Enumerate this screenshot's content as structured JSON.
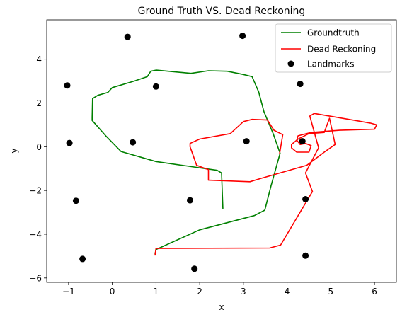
{
  "chart_data": {
    "type": "line",
    "title": "Ground Truth VS. Dead Reckoning",
    "xlabel": "x",
    "ylabel": "y",
    "xlim": [
      -1.5,
      6.5
    ],
    "ylim": [
      -6.2,
      5.8
    ],
    "xticks": [
      -1,
      0,
      1,
      2,
      3,
      4,
      5,
      6
    ],
    "yticks": [
      -6,
      -4,
      -2,
      0,
      2,
      4
    ],
    "grid": false,
    "legend_position": "top-right",
    "series": [
      {
        "name": "Groundtruth",
        "type": "line",
        "color": "#008000",
        "points": [
          [
            2.53,
            -2.82
          ],
          [
            2.5,
            -1.2
          ],
          [
            2.4,
            -1.08
          ],
          [
            1.0,
            -0.68
          ],
          [
            0.2,
            -0.22
          ],
          [
            -0.15,
            0.5
          ],
          [
            -0.46,
            1.2
          ],
          [
            -0.46,
            1.35
          ],
          [
            -0.45,
            2.2
          ],
          [
            -0.33,
            2.35
          ],
          [
            -0.1,
            2.48
          ],
          [
            0.0,
            2.7
          ],
          [
            0.5,
            3.0
          ],
          [
            0.8,
            3.2
          ],
          [
            0.88,
            3.45
          ],
          [
            1.0,
            3.5
          ],
          [
            1.8,
            3.35
          ],
          [
            2.2,
            3.47
          ],
          [
            2.63,
            3.45
          ],
          [
            3.0,
            3.3
          ],
          [
            3.2,
            3.2
          ],
          [
            3.35,
            2.5
          ],
          [
            3.47,
            1.6
          ],
          [
            3.68,
            0.6
          ],
          [
            3.84,
            -0.3
          ],
          [
            3.63,
            -1.8
          ],
          [
            3.49,
            -2.9
          ],
          [
            3.25,
            -3.15
          ],
          [
            2.0,
            -3.8
          ],
          [
            1.0,
            -4.7
          ],
          [
            0.98,
            -4.9
          ]
        ]
      },
      {
        "name": "Dead Reckoning",
        "type": "line",
        "color": "#ff0000",
        "points": [
          [
            0.98,
            -4.95
          ],
          [
            1.0,
            -4.65
          ],
          [
            3.6,
            -4.63
          ],
          [
            3.85,
            -4.5
          ],
          [
            4.58,
            -2.05
          ],
          [
            4.42,
            -1.2
          ],
          [
            4.55,
            -0.7
          ],
          [
            4.72,
            -0.05
          ],
          [
            4.52,
            1.4
          ],
          [
            4.62,
            1.52
          ],
          [
            5.9,
            1.08
          ],
          [
            6.05,
            1.0
          ],
          [
            6.0,
            0.8
          ],
          [
            5.2,
            0.75
          ],
          [
            4.55,
            0.65
          ],
          [
            4.25,
            0.5
          ],
          [
            4.22,
            0.3
          ],
          [
            4.3,
            0.1
          ],
          [
            4.42,
            0.15
          ],
          [
            4.55,
            0.05
          ],
          [
            4.5,
            -0.25
          ],
          [
            4.22,
            -0.25
          ],
          [
            4.1,
            -0.05
          ],
          [
            4.1,
            0.1
          ],
          [
            4.25,
            0.35
          ],
          [
            4.5,
            0.6
          ],
          [
            4.85,
            0.65
          ],
          [
            4.97,
            1.3
          ],
          [
            5.1,
            0.1
          ],
          [
            4.85,
            -0.25
          ],
          [
            4.45,
            -0.85
          ],
          [
            3.4,
            -1.45
          ],
          [
            3.15,
            -1.6
          ],
          [
            2.2,
            -1.53
          ],
          [
            2.2,
            -1.05
          ],
          [
            1.93,
            -0.85
          ],
          [
            1.78,
            0.0
          ],
          [
            1.78,
            0.15
          ],
          [
            2.0,
            0.35
          ],
          [
            2.7,
            0.6
          ],
          [
            3.0,
            1.15
          ],
          [
            3.2,
            1.25
          ],
          [
            3.55,
            1.22
          ],
          [
            3.7,
            0.75
          ],
          [
            3.9,
            0.55
          ],
          [
            3.83,
            -0.3
          ]
        ]
      }
    ],
    "landmarks": {
      "name": "Landmarks",
      "color": "#000000",
      "points": [
        [
          0.35,
          5.02
        ],
        [
          2.98,
          5.07
        ],
        [
          -1.03,
          2.8
        ],
        [
          1.0,
          2.75
        ],
        [
          4.3,
          2.87
        ],
        [
          -0.98,
          0.17
        ],
        [
          0.47,
          0.2
        ],
        [
          3.07,
          0.25
        ],
        [
          4.35,
          0.25
        ],
        [
          -0.83,
          -2.47
        ],
        [
          1.78,
          -2.45
        ],
        [
          4.42,
          -2.4
        ],
        [
          -0.68,
          -5.13
        ],
        [
          1.88,
          -5.58
        ],
        [
          4.42,
          -4.98
        ]
      ]
    }
  }
}
